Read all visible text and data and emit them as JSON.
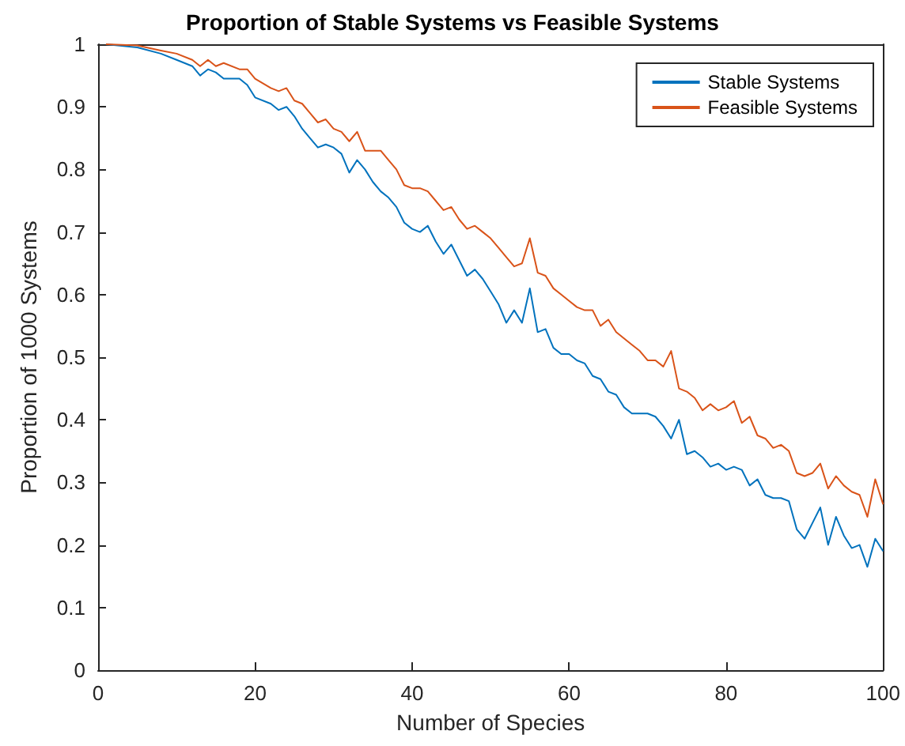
{
  "chart_data": {
    "type": "line",
    "title": "Proportion of Stable Systems vs Feasible Systems",
    "xlabel": "Number of Species",
    "ylabel": "Proportion of 1000 Systems",
    "x": [
      1,
      5,
      8,
      10,
      12,
      13,
      14,
      15,
      16,
      18,
      19,
      20,
      22,
      23,
      24,
      25,
      26,
      27,
      28,
      29,
      30,
      31,
      32,
      33,
      34,
      35,
      36,
      37,
      38,
      39,
      40,
      41,
      42,
      43,
      44,
      45,
      46,
      47,
      48,
      49,
      50,
      51,
      52,
      53,
      54,
      55,
      56,
      57,
      58,
      59,
      60,
      61,
      62,
      63,
      64,
      65,
      66,
      67,
      68,
      69,
      70,
      71,
      72,
      73,
      74,
      75,
      76,
      77,
      78,
      79,
      80,
      81,
      82,
      83,
      84,
      85,
      86,
      87,
      88,
      89,
      90,
      91,
      92,
      93,
      94,
      95,
      96,
      97,
      98,
      99,
      100
    ],
    "series": [
      {
        "name": "Stable Systems",
        "color": "#0072bd",
        "values": [
          1.0,
          0.995,
          0.985,
          0.975,
          0.965,
          0.95,
          0.96,
          0.955,
          0.945,
          0.945,
          0.935,
          0.915,
          0.905,
          0.895,
          0.9,
          0.885,
          0.865,
          0.85,
          0.835,
          0.84,
          0.835,
          0.825,
          0.795,
          0.815,
          0.8,
          0.78,
          0.765,
          0.755,
          0.74,
          0.715,
          0.705,
          0.7,
          0.71,
          0.685,
          0.665,
          0.68,
          0.655,
          0.63,
          0.64,
          0.625,
          0.605,
          0.585,
          0.555,
          0.575,
          0.555,
          0.61,
          0.54,
          0.545,
          0.515,
          0.505,
          0.505,
          0.495,
          0.49,
          0.47,
          0.465,
          0.445,
          0.44,
          0.42,
          0.41,
          0.41,
          0.41,
          0.405,
          0.39,
          0.37,
          0.4,
          0.345,
          0.35,
          0.34,
          0.325,
          0.33,
          0.32,
          0.325,
          0.32,
          0.295,
          0.305,
          0.28,
          0.275,
          0.275,
          0.27,
          0.225,
          0.21,
          0.235,
          0.26,
          0.2,
          0.245,
          0.215,
          0.195,
          0.2,
          0.165,
          0.21,
          0.19
        ]
      },
      {
        "name": "Feasible Systems",
        "color": "#d95319",
        "values": [
          1.0,
          0.998,
          0.99,
          0.985,
          0.975,
          0.965,
          0.975,
          0.965,
          0.97,
          0.96,
          0.96,
          0.945,
          0.93,
          0.925,
          0.93,
          0.91,
          0.905,
          0.89,
          0.875,
          0.88,
          0.865,
          0.86,
          0.845,
          0.86,
          0.83,
          0.83,
          0.83,
          0.815,
          0.8,
          0.775,
          0.77,
          0.77,
          0.765,
          0.75,
          0.735,
          0.74,
          0.72,
          0.705,
          0.71,
          0.7,
          0.69,
          0.675,
          0.66,
          0.645,
          0.65,
          0.69,
          0.635,
          0.63,
          0.61,
          0.6,
          0.59,
          0.58,
          0.575,
          0.575,
          0.55,
          0.56,
          0.54,
          0.53,
          0.52,
          0.51,
          0.495,
          0.495,
          0.485,
          0.51,
          0.45,
          0.445,
          0.435,
          0.415,
          0.425,
          0.415,
          0.42,
          0.43,
          0.395,
          0.405,
          0.375,
          0.37,
          0.355,
          0.36,
          0.35,
          0.315,
          0.31,
          0.315,
          0.33,
          0.29,
          0.31,
          0.295,
          0.285,
          0.28,
          0.245,
          0.305,
          0.265
        ]
      }
    ],
    "xlim": [
      0,
      100
    ],
    "xticks": [
      0,
      20,
      40,
      60,
      80,
      100
    ],
    "ylim": [
      0,
      1
    ],
    "yticks": [
      0,
      0.1,
      0.2,
      0.3,
      0.4,
      0.5,
      0.6,
      0.7,
      0.8,
      0.9,
      1
    ],
    "grid": false,
    "legend": "top right",
    "marker": "none",
    "line_style": "solid"
  }
}
